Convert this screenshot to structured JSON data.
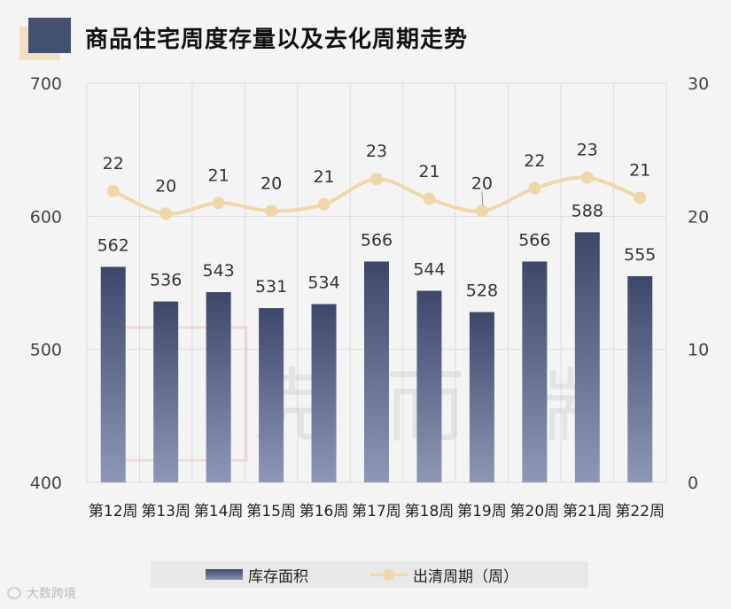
{
  "title": "商品住宅周度存量以及去化周期走势",
  "source": "大数跨境",
  "watermark": "克而瑞",
  "chart_data": {
    "type": "bar+line",
    "categories": [
      "第12周",
      "第13周",
      "第14周",
      "第15周",
      "第16周",
      "第17周",
      "第18周",
      "第19周",
      "第20周",
      "第21周",
      "第22周"
    ],
    "series": [
      {
        "name": "库存面积",
        "type": "bar",
        "axis": "left",
        "values": [
          562,
          536,
          543,
          531,
          534,
          566,
          544,
          528,
          566,
          588,
          555
        ]
      },
      {
        "name": "出清周期（周）",
        "type": "line",
        "axis": "right",
        "values": [
          22,
          20,
          21,
          20,
          21,
          23,
          21,
          20,
          22,
          23,
          21
        ],
        "plotted": [
          21.9,
          20.2,
          21.0,
          20.4,
          20.9,
          22.8,
          21.3,
          20.4,
          22.1,
          22.9,
          21.4
        ]
      }
    ],
    "y_left": {
      "min": 400,
      "max": 700,
      "ticks": [
        "400",
        "500",
        "600",
        "700"
      ]
    },
    "y_right": {
      "min": 0,
      "max": 30,
      "ticks": [
        "0",
        "10",
        "20",
        "30"
      ]
    },
    "legend": [
      "库存面积",
      "出清周期（周）"
    ],
    "legend_position": "bottom",
    "colors": {
      "bar_top": "#3d4869",
      "bar_bottom": "#8d98b6",
      "line": "#f0d7aa",
      "grid": "#dddddd"
    }
  }
}
